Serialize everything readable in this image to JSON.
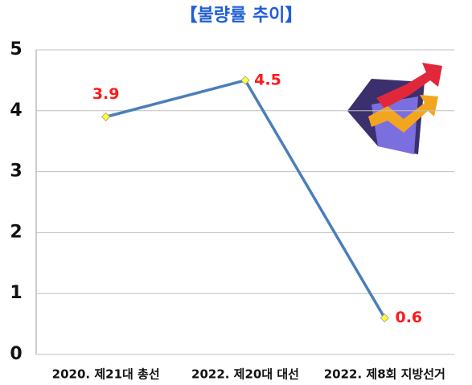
{
  "chart_data": {
    "type": "line",
    "title": "【불량률 추이】",
    "categories": [
      "2020. 제21대 총선",
      "2022. 제20대 대선",
      "2022. 제8회 지방선거"
    ],
    "values": [
      3.9,
      4.5,
      0.6
    ],
    "color": "#4a7ebb",
    "marker_color": "#ffff33",
    "label_color": "#ff1a1a",
    "ylim": [
      0,
      5
    ],
    "yticks": [
      0,
      1,
      2,
      3,
      4,
      5
    ],
    "grid": true
  }
}
